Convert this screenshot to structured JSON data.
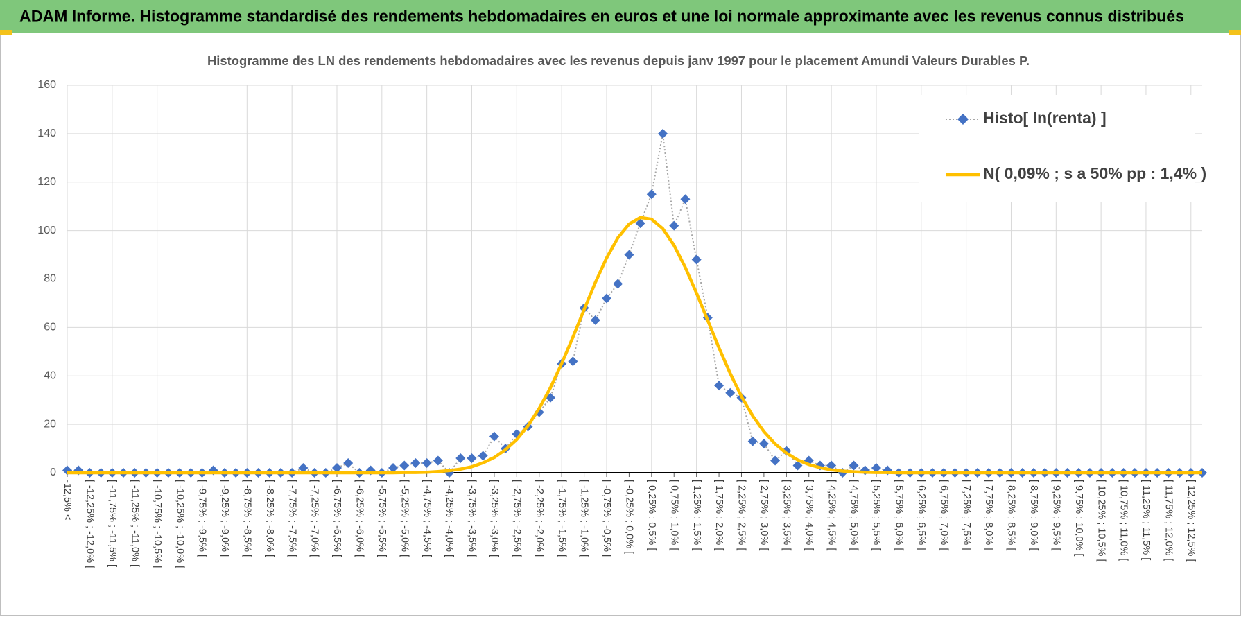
{
  "header": {
    "title": "ADAM Informe. Histogramme standardisé des rendements hebdomadaires en euros et une loi normale approximante avec les revenus connus distribués"
  },
  "chart_data": {
    "type": "line",
    "title": "Histogramme des LN des rendements hebdomadaires avec les revenus depuis janv 1997 pour le placement Amundi Valeurs Durables P.",
    "categories": [
      "-12,5% <",
      null,
      "[ -12,25% ; -12,0% [",
      null,
      "[ -11,75% ; -11,5% [",
      null,
      "[ -11,25% ; -11,0% [",
      null,
      "[ -10,75% ; -10,5% [",
      null,
      "[ -10,25% ; -10,0% [",
      null,
      "[ -9,75% ; -9,5% [",
      null,
      "[ -9,25% ; -9,0% [",
      null,
      "[ -8,75% ; -8,5% [",
      null,
      "[ -8,25% ; -8,0% [",
      null,
      "[ -7,75% ; -7,5% [",
      null,
      "[ -7,25% ; -7,0% [",
      null,
      "[ -6,75% ; -6,5% [",
      null,
      "[ -6,25% ; -6,0% [",
      null,
      "[ -5,75% ; -5,5% [",
      null,
      "[ -5,25% ; -5,0% [",
      null,
      "[ -4,75% ; -4,5% [",
      null,
      "[ -4,25% ; -4,0% [",
      null,
      "[ -3,75% ; -3,5% [",
      null,
      "[ -3,25% ; -3,0% [",
      null,
      "[ -2,75% ; -2,5% [",
      null,
      "[ -2,25% ; -2,0% [",
      null,
      "[ -1,75% ; -1,5% [",
      null,
      "[ -1,25% ; -1,0% [",
      null,
      "[ -0,75% ; -0,5% [",
      null,
      "[ -0,25% ; 0,0% [",
      null,
      "[ 0,25% ; 0,5% [",
      null,
      "[ 0,75% ; 1,0% [",
      null,
      "[ 1,25% ; 1,5% [",
      null,
      "[ 1,75% ; 2,0% [",
      null,
      "[ 2,25% ; 2,5% [",
      null,
      "[ 2,75% ; 3,0% [",
      null,
      "[ 3,25% ; 3,5% [",
      null,
      "[ 3,75% ; 4,0% [",
      null,
      "[ 4,25% ; 4,5% [",
      null,
      "[ 4,75% ; 5,0% [",
      null,
      "[ 5,25% ; 5,5% [",
      null,
      "[ 5,75% ; 6,0% [",
      null,
      "[ 6,25% ; 6,5% [",
      null,
      "[ 6,75% ; 7,0% [",
      null,
      "[ 7,25% ; 7,5% [",
      null,
      "[ 7,75% ; 8,0% [",
      null,
      "[ 8,25% ; 8,5% [",
      null,
      "[ 8,75% ; 9,0% [",
      null,
      "[ 9,25% ; 9,5% [",
      null,
      "[ 9,75% ; 10,0% [",
      null,
      "[ 10,25% ; 10,5% [",
      null,
      "[ 10,75% ; 11,0% [",
      null,
      "[ 11,25% ; 11,5% [",
      null,
      "[ 11,75% ; 12,0% [",
      null,
      "[ 12,25% ; 12,5% [",
      null
    ],
    "series": [
      {
        "name": "Histo[ ln(renta) ]",
        "color": "#4472c4",
        "line_color": "#a6a6a6",
        "line_style": "dotted",
        "marker": "diamond",
        "values": [
          1,
          1,
          0,
          0,
          0,
          0,
          0,
          0,
          0,
          0,
          0,
          0,
          0,
          1,
          0,
          0,
          0,
          0,
          0,
          0,
          0,
          2,
          0,
          0,
          2,
          4,
          0,
          1,
          0,
          2,
          3,
          4,
          4,
          5,
          0,
          6,
          6,
          7,
          15,
          10,
          16,
          19,
          25,
          31,
          45,
          46,
          68,
          63,
          72,
          78,
          90,
          103,
          115,
          140,
          102,
          113,
          88,
          64,
          36,
          33,
          31,
          13,
          12,
          5,
          9,
          3,
          5,
          3,
          3,
          0,
          3,
          1,
          2,
          1,
          0,
          0,
          0,
          0,
          0,
          0,
          0,
          0,
          0,
          0,
          0,
          0,
          0,
          0,
          0,
          0,
          0,
          0,
          0,
          0,
          0,
          0,
          0,
          0,
          0,
          0,
          0,
          0
        ]
      },
      {
        "name": "N( 0,09% ; s a 50% pp : 1,4% )",
        "color": "#ffc000",
        "line_color": "#ffc000",
        "line_style": "solid",
        "values": [
          0,
          0,
          0,
          0,
          0,
          0,
          0,
          0,
          0,
          0,
          0,
          0,
          0,
          0,
          0,
          0,
          0,
          0,
          0,
          0,
          0,
          0,
          0,
          0,
          0,
          0,
          0,
          0,
          0,
          0,
          0.1,
          0.1,
          0.2,
          0.5,
          0.9,
          1.5,
          2.5,
          4.1,
          6.3,
          9.5,
          13.7,
          19.4,
          26.6,
          35.1,
          45.1,
          56,
          67.4,
          78.6,
          88.7,
          97,
          102.7,
          105.4,
          104.7,
          100.8,
          93.9,
          84.8,
          74.2,
          62.9,
          51.6,
          41,
          31.5,
          23.5,
          17,
          11.9,
          8.1,
          5.3,
          3.4,
          2.1,
          1.2,
          0.7,
          0.4,
          0.2,
          0.1,
          0.1,
          0,
          0,
          0,
          0,
          0,
          0,
          0,
          0,
          0,
          0,
          0,
          0,
          0,
          0,
          0,
          0,
          0,
          0,
          0,
          0,
          0,
          0,
          0,
          0,
          0,
          0,
          0,
          0
        ]
      }
    ],
    "ylim": [
      0,
      160
    ],
    "yticks": [
      0,
      20,
      40,
      60,
      80,
      100,
      120,
      140,
      160
    ],
    "grid": true,
    "legend": "upper-right"
  }
}
